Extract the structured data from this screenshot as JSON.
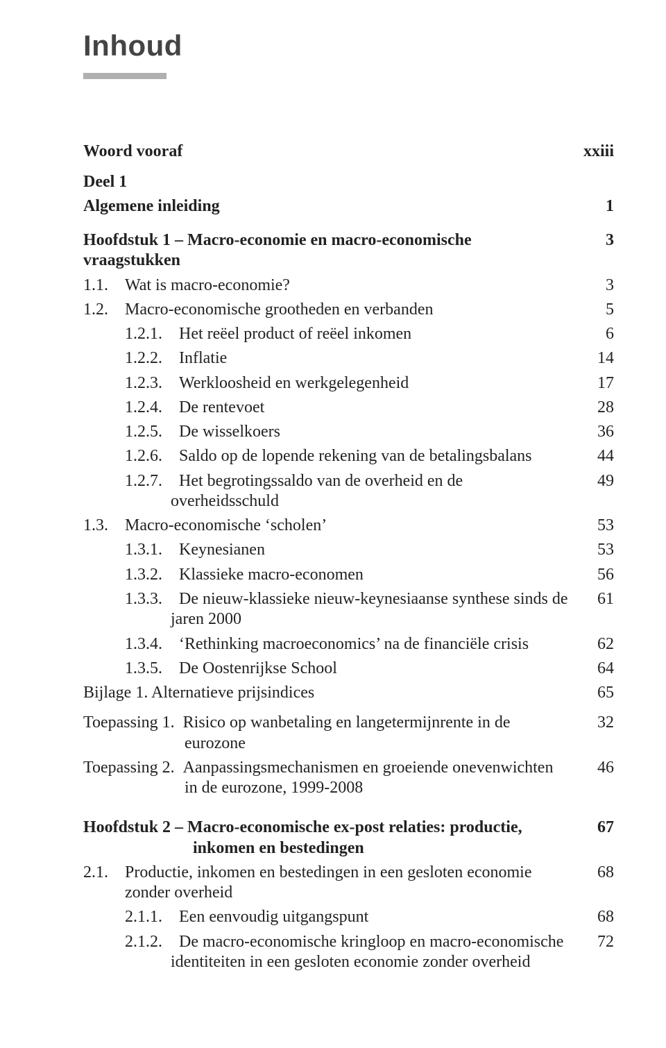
{
  "title": "Inhoud",
  "entries": [
    {
      "style": "bold",
      "indent": "indent-1",
      "label": "Woord vooraf",
      "page": "xxiii",
      "gapAfter": "sm"
    },
    {
      "style": "bold",
      "indent": "indent-1",
      "label": "Deel 1",
      "page": ""
    },
    {
      "style": "bold",
      "indent": "indent-1",
      "label": "Algemene inleiding",
      "page": "1",
      "gapAfter": "md"
    },
    {
      "style": "bold",
      "indent": "indent-1",
      "label": "Hoofdstuk 1 – Macro-economie en macro-economische vraagstukken",
      "page": "3"
    },
    {
      "indent": "indent-2",
      "label": "1.1. Wat is macro-economie?",
      "page": "3"
    },
    {
      "indent": "indent-2",
      "label": "1.2. Macro-economische grootheden en verbanden",
      "page": "5"
    },
    {
      "indent": "indent-3",
      "label": "1.2.1. Het reëel product of reëel inkomen",
      "page": "6"
    },
    {
      "indent": "indent-3",
      "label": "1.2.2. Inflatie",
      "page": "14"
    },
    {
      "indent": "indent-3",
      "label": "1.2.3. Werkloosheid en werkgelegenheid",
      "page": "17"
    },
    {
      "indent": "indent-3",
      "label": "1.2.4. De rentevoet",
      "page": "28"
    },
    {
      "indent": "indent-3",
      "label": "1.2.5. De wisselkoers",
      "page": "36"
    },
    {
      "indent": "indent-3",
      "label": "1.2.6. Saldo op de lopende rekening van de betalingsbalans",
      "page": "44"
    },
    {
      "indent": "indent-3",
      "label": "1.2.7. Het begrotingssaldo van de overheid en de overheidsschuld",
      "page": "49"
    },
    {
      "indent": "indent-2",
      "label": "1.3. Macro-economische ‘scholen’",
      "page": "53"
    },
    {
      "indent": "indent-3",
      "label": "1.3.1. Keynesianen",
      "page": "53"
    },
    {
      "indent": "indent-3",
      "label": "1.3.2. Klassieke macro-economen",
      "page": "56"
    },
    {
      "indent": "indent-3",
      "hang": "hang-sub",
      "label": "1.3.3. De nieuw-klassieke nieuw-keynesiaanse synthese sinds de jaren 2000",
      "page": "61"
    },
    {
      "indent": "indent-3",
      "label": "1.3.4. ‘Rethinking macroeconomics’ na de financiële crisis",
      "page": "62"
    },
    {
      "indent": "indent-3",
      "label": "1.3.5. De Oostenrijkse School",
      "page": "64"
    },
    {
      "indent": "indent-1",
      "label": "Bijlage 1. Alternatieve prijsindices",
      "page": "65",
      "gapAfter": "sm"
    },
    {
      "indent": "indent-1",
      "hang": "hang-toep",
      "label": "Toepassing 1. Risico op wanbetaling en langetermijnrente in de eurozone",
      "page": "32"
    },
    {
      "indent": "indent-1",
      "hang": "hang-toep",
      "label": "Toepassing 2. Aanpassingsmechanismen en groeiende onevenwichten in de eurozone, 1999-2008",
      "page": "46",
      "gapAfter": "lg"
    },
    {
      "style": "bold",
      "indent": "indent-1",
      "hang": "hang-chap",
      "label": "Hoofdstuk 2 – Macro-economische ex-post relaties: productie, inkomen en bestedingen",
      "page": "67"
    },
    {
      "indent": "indent-2",
      "label": "2.1. Productie, inkomen en bestedingen in een gesloten economie zonder overheid",
      "page": "68"
    },
    {
      "indent": "indent-3",
      "label": "2.1.1. Een eenvoudig uitgangspunt",
      "page": "68"
    },
    {
      "indent": "indent-3",
      "hang": "hang-sub",
      "label": "2.1.2. De macro-economische kringloop en macro-economische identiteiten in een gesloten economie zonder overheid",
      "page": "72"
    }
  ]
}
